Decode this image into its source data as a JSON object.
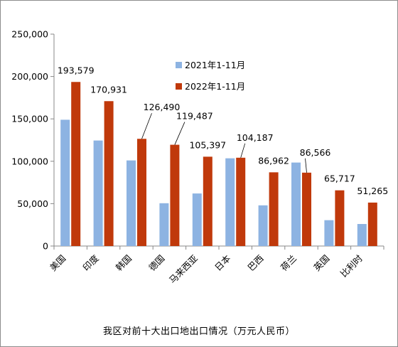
{
  "chart_data": {
    "type": "bar",
    "title": "我区对前十大出口地出口情况（万元人民币）",
    "categories": [
      "美国",
      "印度",
      "韩国",
      "德国",
      "马来西亚",
      "日本",
      "巴西",
      "荷兰",
      "英国",
      "比利时"
    ],
    "series": [
      {
        "name": "2021年1-11月",
        "color": "#8db3e2",
        "values": [
          149000,
          124500,
          101000,
          50500,
          62000,
          103500,
          48000,
          98500,
          30500,
          26000
        ]
      },
      {
        "name": "2022年1-11月",
        "color": "#c0390b",
        "values": [
          193579,
          170931,
          126490,
          119487,
          105397,
          104187,
          86962,
          86566,
          65717,
          51265
        ]
      }
    ],
    "data_labels": [
      "193,579",
      "170,931",
      "126,490",
      "119,487",
      "105,397",
      "104,187",
      "86,962",
      "86,566",
      "65,717",
      "51,265"
    ],
    "y_ticks": [
      "0",
      "50,000",
      "100,000",
      "150,000",
      "200,000",
      "250,000"
    ],
    "ylim": [
      0,
      250000
    ],
    "grid": false,
    "legend_position": "top-center"
  }
}
